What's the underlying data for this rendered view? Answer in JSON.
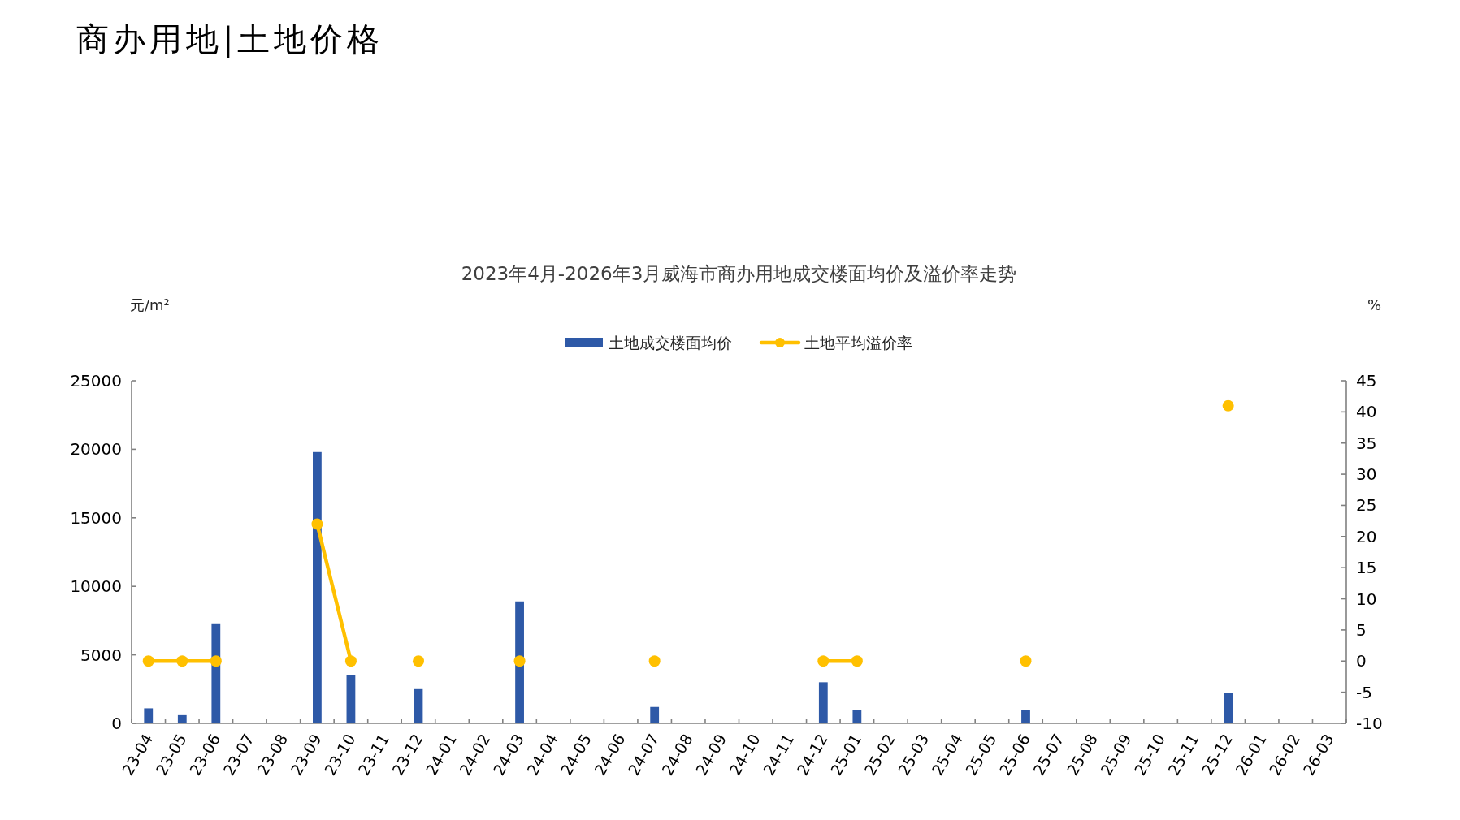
{
  "chart_data": {
    "type": "bar",
    "title": "商办用地|土地价格",
    "subtitle": "2023年4月-2026年3月威海市商办用地成交楼面均价及溢价率走势",
    "ylabel": "元/m²",
    "y2label": "%",
    "categories": [
      "23-04",
      "23-05",
      "23-06",
      "23-07",
      "23-08",
      "23-09",
      "23-10",
      "23-11",
      "23-12",
      "24-01",
      "24-02",
      "24-03",
      "24-04",
      "24-05",
      "24-06",
      "24-07",
      "24-08",
      "24-09",
      "24-10",
      "24-11",
      "24-12",
      "25-01",
      "25-02",
      "25-03",
      "25-04",
      "25-05",
      "25-06",
      "25-07",
      "25-08",
      "25-09",
      "25-10",
      "25-11",
      "25-12",
      "26-01",
      "26-02",
      "26-03"
    ],
    "series": [
      {
        "name": "土地成交楼面均价",
        "color": "#2e59a7",
        "values": [
          1100,
          600,
          7300,
          null,
          null,
          19800,
          3500,
          null,
          2500,
          null,
          null,
          8900,
          null,
          null,
          null,
          1200,
          null,
          null,
          null,
          null,
          3000,
          1000,
          null,
          null,
          null,
          null,
          1000,
          null,
          null,
          null,
          null,
          null,
          2200,
          null,
          null,
          null
        ]
      },
      {
        "name": "土地平均溢价率",
        "type": "line",
        "axis": "y2",
        "color": "#ffc000",
        "marker": "circle",
        "values": [
          0,
          0,
          0,
          null,
          null,
          22,
          0,
          null,
          0,
          null,
          null,
          0,
          null,
          null,
          null,
          0,
          null,
          null,
          null,
          null,
          0,
          0,
          null,
          null,
          null,
          null,
          0,
          null,
          null,
          null,
          null,
          null,
          41,
          null,
          null,
          null
        ]
      }
    ],
    "ylim": [
      0,
      25000
    ],
    "yticks": [
      0,
      5000,
      10000,
      15000,
      20000,
      25000
    ],
    "y2lim": [
      -10,
      45
    ],
    "y2ticks": [
      -10,
      -5,
      0,
      5,
      10,
      15,
      20,
      25,
      30,
      35,
      40,
      45
    ],
    "legend": "top"
  }
}
